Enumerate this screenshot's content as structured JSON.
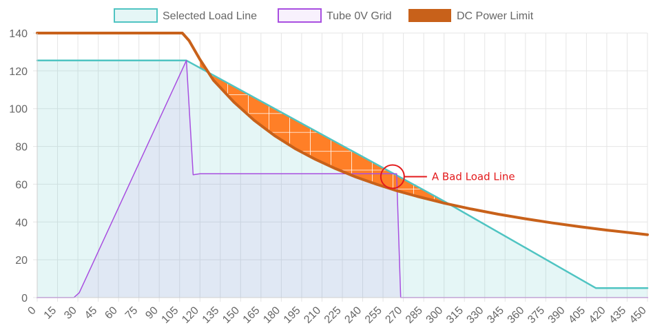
{
  "chart_data": {
    "type": "line",
    "title": "",
    "xlabel": "",
    "ylabel": "",
    "xlim": [
      0,
      450
    ],
    "ylim": [
      0,
      140
    ],
    "grid": true,
    "legend_position": "top",
    "x_ticks": [
      0,
      15,
      30,
      45,
      60,
      75,
      90,
      105,
      120,
      135,
      150,
      165,
      180,
      195,
      210,
      225,
      240,
      255,
      270,
      285,
      300,
      315,
      330,
      345,
      360,
      375,
      390,
      405,
      420,
      435,
      450
    ],
    "y_ticks": [
      0,
      20,
      40,
      60,
      80,
      100,
      120,
      140
    ],
    "series": [
      {
        "name": "Selected Load Line",
        "color": "#4fc4c2",
        "fill": "rgba(79,196,194,0.15)",
        "points": [
          [
            0,
            125.5
          ],
          [
            110,
            125.5
          ],
          [
            300,
            51
          ],
          [
            412,
            5
          ],
          [
            450,
            5
          ]
        ]
      },
      {
        "name": "Tube 0V Grid",
        "color": "#a84ee0",
        "fill": "rgba(168,78,224,0.08)",
        "points": [
          [
            0,
            0
          ],
          [
            27,
            0
          ],
          [
            31,
            2.5
          ],
          [
            110,
            125.5
          ],
          [
            115,
            65
          ],
          [
            120,
            65.5
          ],
          [
            265,
            65.5
          ],
          [
            268,
            0
          ],
          [
            450,
            0
          ]
        ]
      },
      {
        "name": "DC Power Limit",
        "color": "#c8611a",
        "points": [
          [
            0,
            140
          ],
          [
            107,
            140
          ],
          [
            112,
            136
          ],
          [
            120,
            126
          ],
          [
            130,
            115
          ],
          [
            145,
            103.5
          ],
          [
            160,
            93.8
          ],
          [
            175,
            85.7
          ],
          [
            190,
            78.9
          ],
          [
            205,
            73.2
          ],
          [
            220,
            68.2
          ],
          [
            235,
            63.8
          ],
          [
            250,
            60
          ],
          [
            265,
            56.6
          ],
          [
            280,
            53.6
          ],
          [
            300,
            50
          ],
          [
            320,
            46.9
          ],
          [
            340,
            44.1
          ],
          [
            360,
            41.7
          ],
          [
            380,
            39.5
          ],
          [
            400,
            37.5
          ],
          [
            420,
            35.7
          ],
          [
            440,
            34.1
          ],
          [
            450,
            33.3
          ]
        ]
      }
    ],
    "annotations": [
      {
        "text": "A Bad Load Line",
        "color": "#e31a1c",
        "target": [
          262,
          64
        ]
      }
    ],
    "hatched_region": {
      "color": "#ff7f27",
      "x_range": [
        120,
        300
      ]
    }
  }
}
